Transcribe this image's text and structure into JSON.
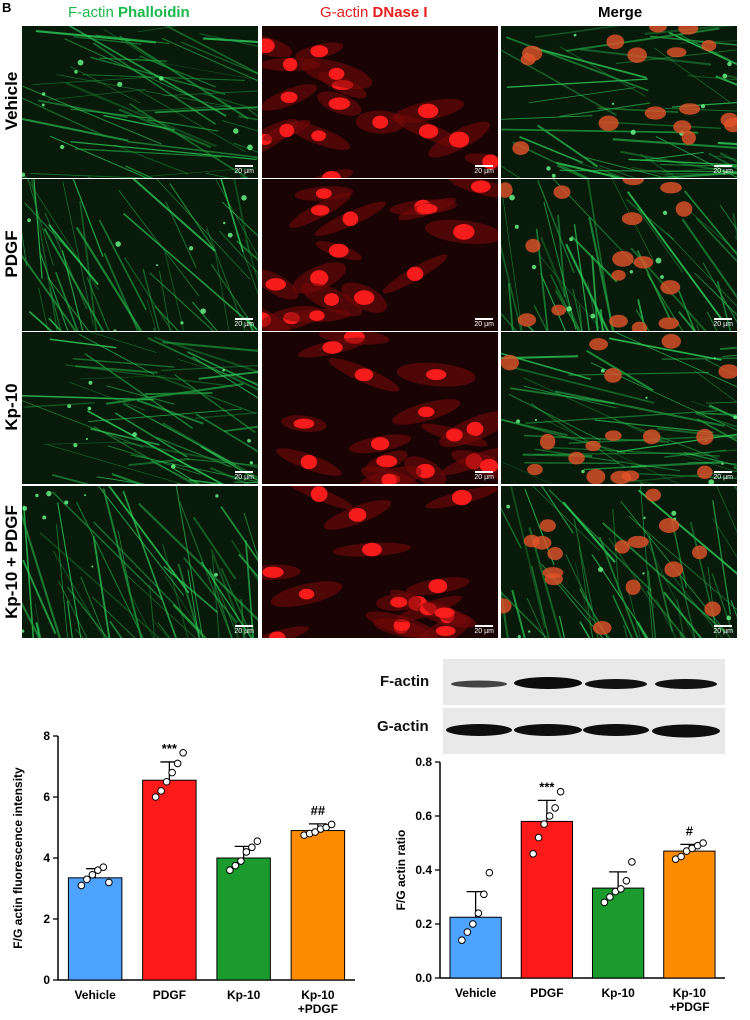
{
  "panel_letter": "B",
  "headers": {
    "col1_prefix": "F-actin",
    "col1_name": "Phalloidin",
    "col2_prefix": "G-actin",
    "col2_name": "DNase I",
    "col3": "Merge"
  },
  "rows": [
    "Vehicle",
    "PDGF",
    "Kp-10",
    "Kp-10 + PDGF"
  ],
  "scale_bar": "20 µm",
  "colors": {
    "green_text": "#19b84a",
    "red_text": "#e41c1c",
    "vehicle": "#4da3ff",
    "pdgf": "#ff1a1a",
    "kp10": "#1b9a2d",
    "kp10_pdgf": "#ff8c00"
  },
  "blot": {
    "f_actin_label": "F-actin",
    "g_actin_label": "G-actin"
  },
  "chart_data": [
    {
      "type": "bar",
      "categories": [
        "Vehicle",
        "PDGF",
        "Kp-10",
        "Kp-10\n+PDGF"
      ],
      "values": [
        3.35,
        6.55,
        4.0,
        4.9
      ],
      "errors": [
        0.3,
        0.6,
        0.38,
        0.22
      ],
      "points": [
        [
          3.1,
          3.3,
          3.45,
          3.6,
          3.7,
          3.2
        ],
        [
          6.0,
          6.2,
          6.5,
          6.8,
          7.1,
          7.45
        ],
        [
          3.6,
          3.75,
          3.9,
          4.2,
          4.35,
          4.55
        ],
        [
          4.75,
          4.8,
          4.85,
          4.95,
          5.0,
          5.1
        ]
      ],
      "annotations": [
        "",
        "***",
        "",
        "##"
      ],
      "ylabel": "F/G actin fluorescence  intensity",
      "ylim": [
        0,
        8
      ],
      "yticks": [
        "0",
        "2",
        "4",
        "6",
        "8"
      ]
    },
    {
      "type": "bar",
      "categories": [
        "Vehicle",
        "PDGF",
        "Kp-10",
        "Kp-10\n+PDGF"
      ],
      "values": [
        0.225,
        0.58,
        0.333,
        0.47
      ],
      "errors": [
        0.095,
        0.078,
        0.06,
        0.025
      ],
      "points": [
        [
          0.14,
          0.17,
          0.2,
          0.24,
          0.31,
          0.39
        ],
        [
          0.46,
          0.52,
          0.57,
          0.6,
          0.63,
          0.69
        ],
        [
          0.28,
          0.3,
          0.32,
          0.33,
          0.36,
          0.43
        ],
        [
          0.44,
          0.45,
          0.47,
          0.48,
          0.49,
          0.5
        ]
      ],
      "annotations": [
        "",
        "***",
        "",
        "#"
      ],
      "ylabel": "F/G actin ratio",
      "ylim": [
        0,
        0.8
      ],
      "yticks": [
        "0.0",
        "0.2",
        "0.4",
        "0.6",
        "0.8"
      ]
    }
  ]
}
